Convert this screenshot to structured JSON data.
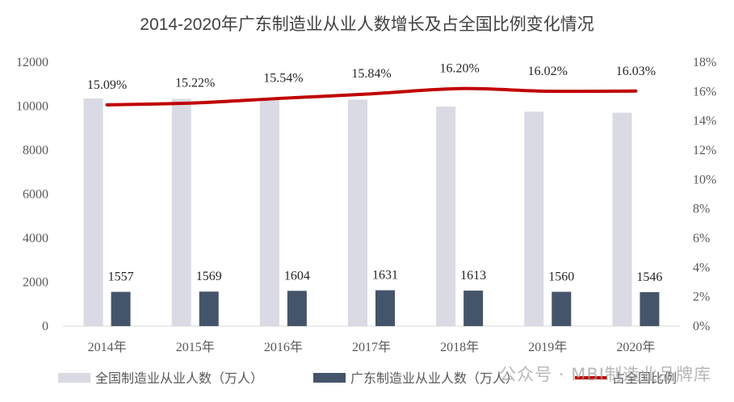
{
  "chart_data": {
    "type": "bar",
    "title": "2014-2020年广东制造业从业人数增长及占全国比例变化情况",
    "categories": [
      "2014年",
      "2015年",
      "2016年",
      "2017年",
      "2018年",
      "2019年",
      "2020年"
    ],
    "series": [
      {
        "name": "全国制造业从业人数（万人）",
        "type": "bar",
        "axis": "left",
        "color": "#d9dae3",
        "values": [
          10350,
          10330,
          10320,
          10300,
          9980,
          9750,
          9700
        ]
      },
      {
        "name": "广东制造业从业人数（万人）",
        "type": "bar",
        "axis": "left",
        "color": "#44546a",
        "values": [
          1557,
          1569,
          1604,
          1631,
          1613,
          1560,
          1546
        ],
        "labels": [
          "1557",
          "1569",
          "1604",
          "1631",
          "1613",
          "1560",
          "1546"
        ]
      },
      {
        "name": "占全国比例",
        "type": "line",
        "axis": "right",
        "color": "#c00000",
        "values": [
          15.09,
          15.22,
          15.54,
          15.84,
          16.2,
          16.02,
          16.03
        ],
        "labels": [
          "15.09%",
          "15.22%",
          "15.54%",
          "15.84%",
          "16.20%",
          "16.02%",
          "16.03%"
        ]
      }
    ],
    "y_left": {
      "range": [
        0,
        12000
      ],
      "ticks": [
        "0",
        "2000",
        "4000",
        "6000",
        "8000",
        "10000",
        "12000"
      ]
    },
    "y_right": {
      "range": [
        0,
        18
      ],
      "ticks": [
        "0%",
        "2%",
        "4%",
        "6%",
        "8%",
        "10%",
        "12%",
        "14%",
        "16%",
        "18%"
      ]
    },
    "grid": false,
    "legend_position": "bottom"
  },
  "watermark": "公众号 · MBI制造业品牌库"
}
